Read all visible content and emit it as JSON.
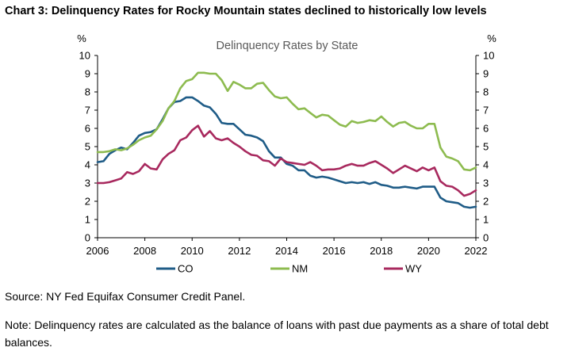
{
  "heading": "Chart 3: Delinquency Rates for Rocky Mountain states declined to historically low levels",
  "source": "Source: NY Fed Equifax Consumer Credit Panel.",
  "note": "Note: Delinquency rates are calculated as the balance of loans with past due payments as a share of total debt balances.",
  "chart_data": {
    "type": "line",
    "title": "Delinquency Rates by State",
    "ylabel_left": "%",
    "ylabel_right": "%",
    "xlim": [
      2006,
      2022
    ],
    "ylim": [
      0,
      10
    ],
    "x_ticks": [
      2006,
      2008,
      2010,
      2012,
      2014,
      2016,
      2018,
      2020,
      2022
    ],
    "x_tick_labels": [
      "2006",
      "2008",
      "2010",
      "2012",
      "2014",
      "2016",
      "2018",
      "2020",
      "2022"
    ],
    "y_ticks": [
      0,
      1,
      2,
      3,
      4,
      5,
      6,
      7,
      8,
      9,
      10
    ],
    "y_tick_labels": [
      "0",
      "1",
      "2",
      "3",
      "4",
      "5",
      "6",
      "7",
      "8",
      "9",
      "10"
    ],
    "grid": false,
    "legend_position": "bottom",
    "x": [
      2006.0,
      2006.25,
      2006.5,
      2006.75,
      2007.0,
      2007.25,
      2007.5,
      2007.75,
      2008.0,
      2008.25,
      2008.5,
      2008.75,
      2009.0,
      2009.25,
      2009.5,
      2009.75,
      2010.0,
      2010.25,
      2010.5,
      2010.75,
      2011.0,
      2011.25,
      2011.5,
      2011.75,
      2012.0,
      2012.25,
      2012.5,
      2012.75,
      2013.0,
      2013.25,
      2013.5,
      2013.75,
      2014.0,
      2014.25,
      2014.5,
      2014.75,
      2015.0,
      2015.25,
      2015.5,
      2015.75,
      2016.0,
      2016.25,
      2016.5,
      2016.75,
      2017.0,
      2017.25,
      2017.5,
      2017.75,
      2018.0,
      2018.25,
      2018.5,
      2018.75,
      2019.0,
      2019.25,
      2019.5,
      2019.75,
      2020.0,
      2020.25,
      2020.5,
      2020.75,
      2021.0,
      2021.25,
      2021.5,
      2021.75,
      2022.0
    ],
    "series": [
      {
        "name": "CO",
        "color": "#1f5c87",
        "values": [
          4.15,
          4.2,
          4.6,
          4.8,
          4.95,
          4.85,
          5.2,
          5.6,
          5.75,
          5.8,
          5.95,
          6.5,
          7.1,
          7.45,
          7.5,
          7.7,
          7.7,
          7.5,
          7.25,
          7.15,
          6.8,
          6.3,
          6.25,
          6.25,
          5.95,
          5.65,
          5.6,
          5.5,
          5.3,
          4.75,
          4.4,
          4.4,
          4.05,
          3.95,
          3.7,
          3.7,
          3.4,
          3.3,
          3.35,
          3.3,
          3.2,
          3.1,
          3.0,
          3.05,
          3.0,
          3.05,
          2.95,
          3.05,
          2.9,
          2.85,
          2.75,
          2.75,
          2.8,
          2.75,
          2.7,
          2.8,
          2.8,
          2.8,
          2.2,
          2.0,
          1.95,
          1.9,
          1.7,
          1.65,
          1.7
        ]
      },
      {
        "name": "NM",
        "color": "#8dbb4f",
        "values": [
          4.7,
          4.7,
          4.75,
          4.85,
          4.8,
          4.9,
          5.1,
          5.35,
          5.5,
          5.6,
          5.95,
          6.4,
          7.1,
          7.5,
          8.2,
          8.6,
          8.7,
          9.05,
          9.05,
          9.0,
          9.0,
          8.65,
          8.05,
          8.55,
          8.4,
          8.2,
          8.2,
          8.45,
          8.5,
          8.1,
          7.75,
          7.65,
          7.7,
          7.35,
          7.05,
          7.1,
          6.85,
          6.6,
          6.75,
          6.7,
          6.45,
          6.2,
          6.1,
          6.4,
          6.3,
          6.35,
          6.45,
          6.4,
          6.65,
          6.35,
          6.1,
          6.3,
          6.35,
          6.15,
          6.0,
          6.0,
          6.25,
          6.25,
          4.95,
          4.45,
          4.35,
          4.2,
          3.75,
          3.7,
          3.85
        ]
      },
      {
        "name": "WY",
        "color": "#a8295e",
        "values": [
          3.0,
          3.0,
          3.05,
          3.15,
          3.25,
          3.6,
          3.5,
          3.65,
          4.05,
          3.8,
          3.75,
          4.3,
          4.6,
          4.8,
          5.35,
          5.5,
          5.9,
          6.15,
          5.55,
          5.85,
          5.45,
          5.35,
          5.45,
          5.2,
          5.0,
          4.75,
          4.55,
          4.5,
          4.25,
          4.2,
          3.95,
          4.35,
          4.15,
          4.1,
          4.05,
          4.0,
          4.15,
          3.95,
          3.7,
          3.75,
          3.75,
          3.8,
          3.95,
          4.05,
          3.95,
          3.95,
          4.1,
          4.2,
          4.0,
          3.8,
          3.55,
          3.75,
          3.95,
          3.8,
          3.65,
          3.85,
          3.7,
          3.85,
          3.1,
          2.85,
          2.8,
          2.6,
          2.3,
          2.4,
          2.6
        ]
      }
    ]
  }
}
